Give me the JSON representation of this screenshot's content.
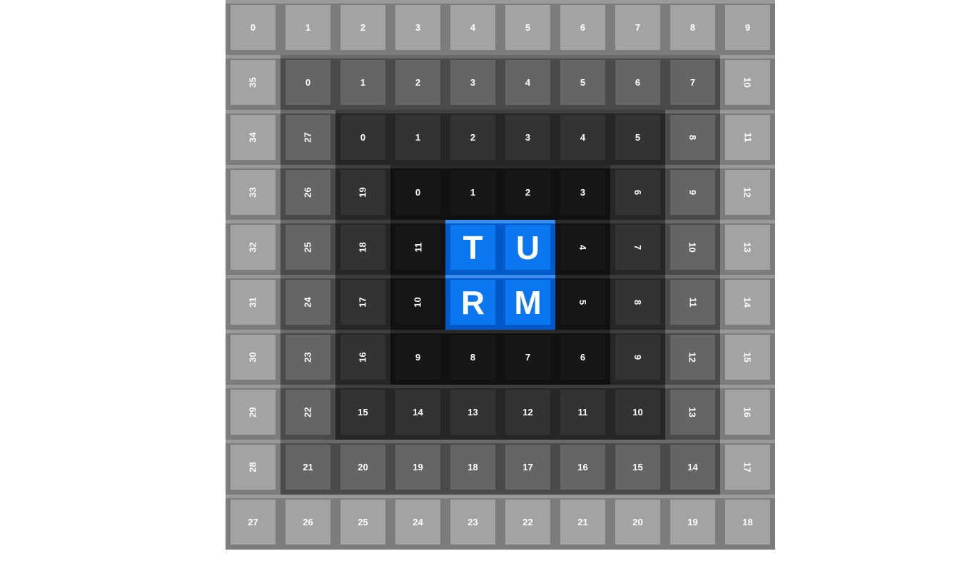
{
  "puzzle": {
    "word_tiles": [
      "T",
      "U",
      "R",
      "M"
    ],
    "ring0": [
      "0",
      "1",
      "2",
      "3",
      "4",
      "5",
      "6",
      "7",
      "8",
      "9",
      "10",
      "11",
      "12",
      "13",
      "14",
      "15",
      "16",
      "17",
      "18",
      "19",
      "20",
      "21",
      "22",
      "23",
      "24",
      "25",
      "26",
      "27",
      "28",
      "29",
      "30",
      "31",
      "32",
      "33",
      "34",
      "35"
    ],
    "ring1": [
      "0",
      "1",
      "2",
      "3",
      "4",
      "5",
      "6",
      "7",
      "8",
      "9",
      "10",
      "11",
      "12",
      "13",
      "14",
      "15",
      "16",
      "17",
      "18",
      "19",
      "20",
      "21",
      "22",
      "23",
      "24",
      "25",
      "26",
      "27"
    ],
    "ring2": [
      "0",
      "1",
      "2",
      "3",
      "4",
      "5",
      "6",
      "7",
      "8",
      "9",
      "10",
      "11",
      "12",
      "13",
      "14",
      "15",
      "16",
      "17",
      "18",
      "19"
    ],
    "ring3": [
      "0",
      "1",
      "2",
      "3",
      "4",
      "5",
      "6",
      "7",
      "8",
      "9",
      "10",
      "11"
    ]
  },
  "colors": {
    "ring0": "#a3a3a3",
    "ring1": "#656565",
    "ring2": "#333333",
    "ring3": "#171717",
    "highlight": "#0a76f0"
  }
}
